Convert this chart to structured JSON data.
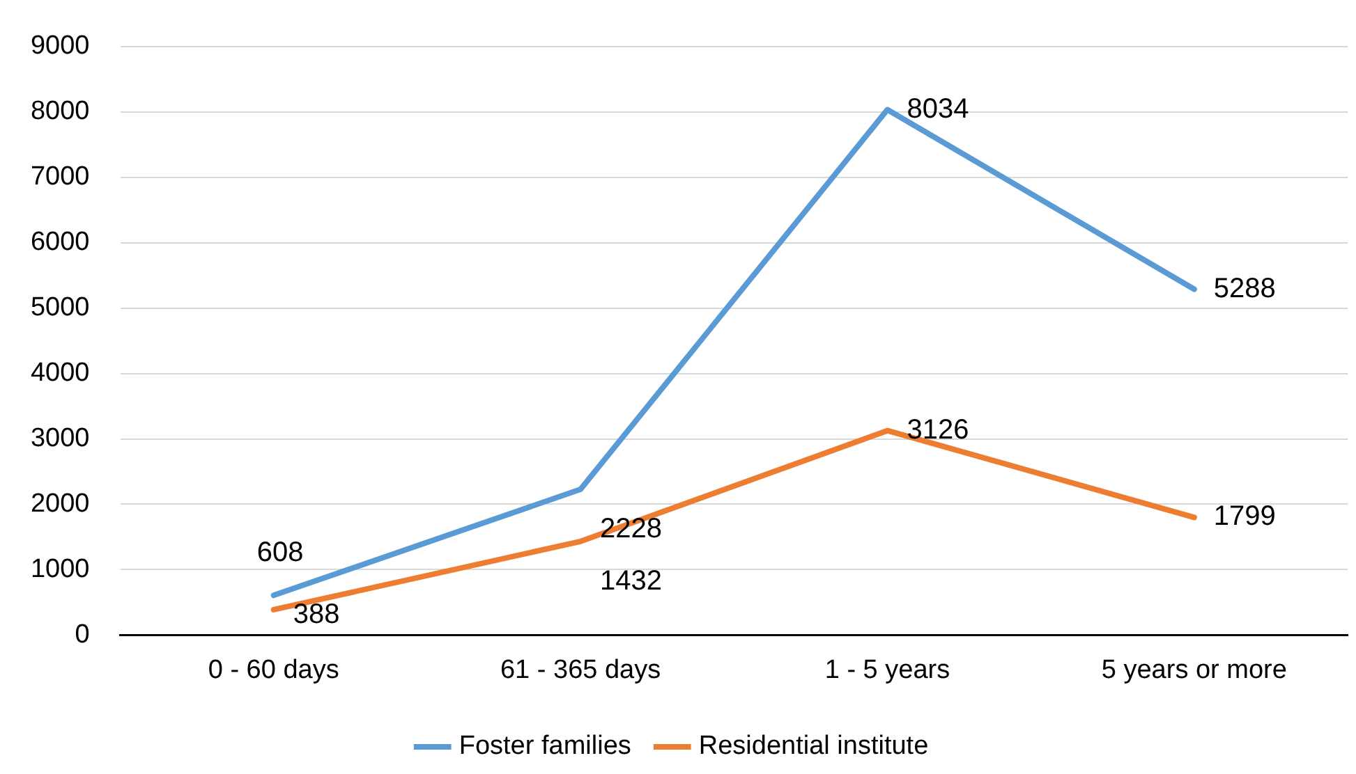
{
  "chart_data": {
    "type": "line",
    "categories": [
      "0 - 60 days",
      "61 - 365 days",
      "1 - 5 years",
      "5 years or more"
    ],
    "series": [
      {
        "name": "Foster families",
        "color": "#5b9bd5",
        "values": [
          608,
          2228,
          8034,
          5288
        ]
      },
      {
        "name": "Residential institute",
        "color": "#ed7d31",
        "values": [
          388,
          1432,
          3126,
          1799
        ]
      }
    ],
    "ylim": [
      0,
      9000
    ],
    "yticks": [
      0,
      1000,
      2000,
      3000,
      4000,
      5000,
      6000,
      7000,
      8000,
      9000
    ],
    "grid": "y",
    "legend": "bottom",
    "marker": "none",
    "line_style": "solid",
    "data_labels": true
  }
}
